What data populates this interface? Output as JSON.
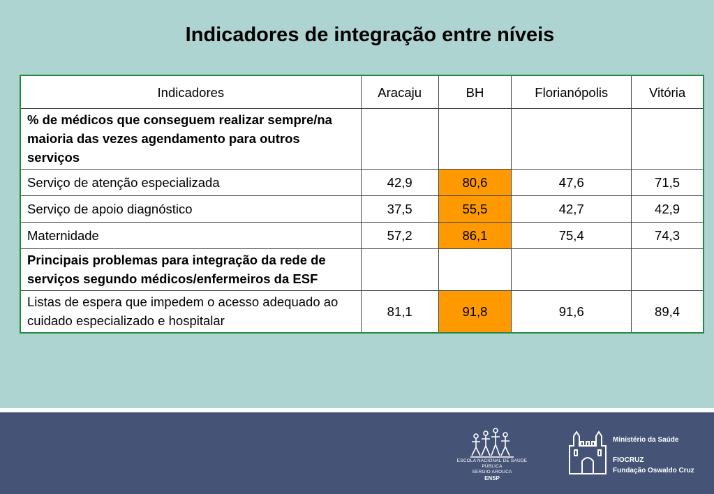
{
  "title": "Indicadores de integração entre níveis",
  "table": {
    "headers": [
      "Indicadores",
      "Aracaju",
      "BH",
      "Florianópolis",
      "Vitória"
    ],
    "section1": "% de médicos que conseguem realizar sempre/na maioria das vezes agendamento para outros serviços",
    "rows1": [
      {
        "label": "Serviço de atenção especializada",
        "values": [
          "42,9",
          "80,6",
          "47,6",
          "71,5"
        ]
      },
      {
        "label": "Serviço de apoio diagnóstico",
        "values": [
          "37,5",
          "55,5",
          "42,7",
          "42,9"
        ]
      },
      {
        "label": "Maternidade",
        "values": [
          "57,2",
          "86,1",
          "75,4",
          "74,3"
        ]
      }
    ],
    "section2": "Principais problemas para integração da rede de serviços segundo médicos/enfermeiros da ESF",
    "rows2": [
      {
        "label": "Listas de espera que impedem o acesso adequado ao cuidado especializado e hospitalar",
        "values": [
          "81,1",
          "91,8",
          "91,6",
          "89,4"
        ]
      }
    ],
    "highlight_color": "#ff9900"
  },
  "footer": {
    "ensp_line1": "ESCOLA NACIONAL DE SAÚDE PÚBLICA",
    "ensp_line2": "SERGIO AROUCA",
    "ensp_abbr": "ENSP",
    "ministry": "Ministério da Saúde",
    "fiocruz": "FIOCRUZ",
    "fiocruz_full": "Fundação Oswaldo Cruz"
  }
}
